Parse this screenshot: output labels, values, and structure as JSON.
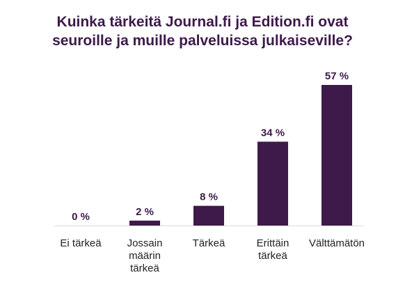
{
  "chart_data": {
    "type": "bar",
    "title": "Kuinka tärkeitä Journal.fi ja Edition.fi ovat\nseuroille ja muille palveluissa julkaiseville?",
    "categories": [
      [
        "Ei tärkeä"
      ],
      [
        "Jossain",
        "määrin",
        "tärkeä"
      ],
      [
        "Tärkeä"
      ],
      [
        "Erittäin",
        "tärkeä"
      ],
      [
        "Välttämätön"
      ]
    ],
    "values": [
      0,
      2,
      8,
      34,
      57
    ],
    "value_labels": [
      "0 %",
      "2 %",
      "8 %",
      "34 %",
      "57 %"
    ],
    "unit": "%",
    "ylim": [
      0,
      57
    ],
    "grid": false,
    "legend": "none",
    "colors": {
      "bar": "#3d1a4a",
      "title": "#3d1a4a",
      "label": "#222222",
      "axis": "#d9d9d9"
    }
  }
}
